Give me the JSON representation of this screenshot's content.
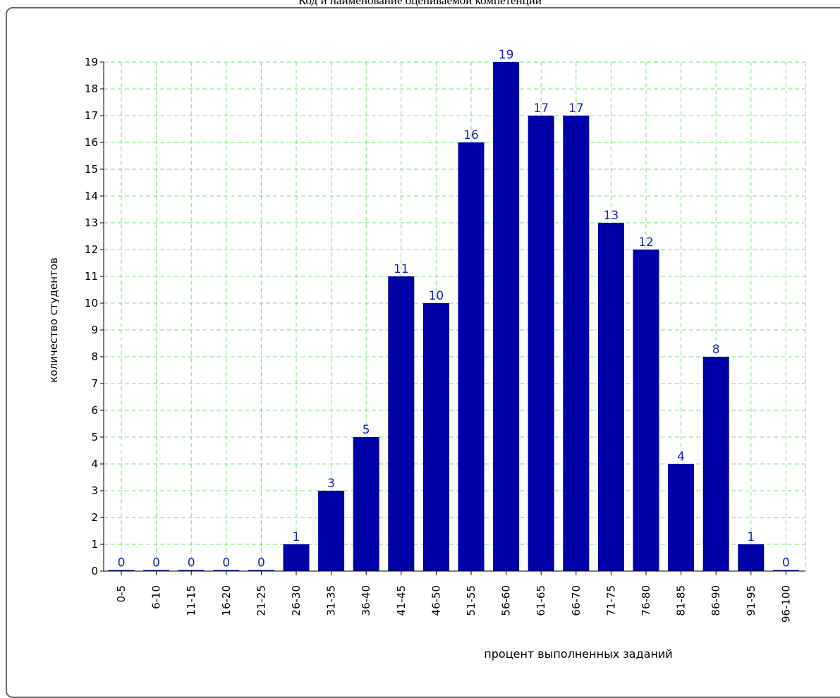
{
  "page": {
    "title": "Код и наименование оцениваемой компетенции"
  },
  "chart_data": {
    "type": "bar",
    "categories": [
      "0-5",
      "6-10",
      "11-15",
      "16-20",
      "21-25",
      "26-30",
      "31-35",
      "36-40",
      "41-45",
      "46-50",
      "51-55",
      "56-60",
      "61-65",
      "66-70",
      "71-75",
      "76-80",
      "81-85",
      "86-90",
      "91-95",
      "96-100"
    ],
    "values": [
      0,
      0,
      0,
      0,
      0,
      1,
      3,
      5,
      11,
      10,
      16,
      19,
      17,
      17,
      13,
      12,
      4,
      8,
      1,
      0
    ],
    "xlabel": "процент выполненных заданий",
    "ylabel": "количество студентов",
    "ylim": [
      0,
      19
    ],
    "yticks": [
      "0",
      "1",
      "2",
      "3",
      "4",
      "5",
      "6",
      "7",
      "8",
      "9",
      "10",
      "11",
      "12",
      "13",
      "14",
      "15",
      "16",
      "17",
      "18",
      "19"
    ],
    "grid": true,
    "bar_color": "#0000a8",
    "label_color": "#1f1fbf",
    "grid_color": "#7ddf7d"
  }
}
